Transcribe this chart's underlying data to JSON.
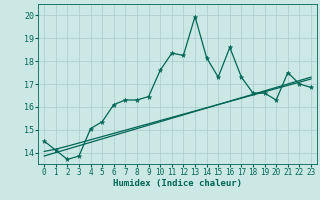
{
  "xlabel": "Humidex (Indice chaleur)",
  "background_color": "#cce8e4",
  "grid_color": "#aacccc",
  "line_color": "#006655",
  "x_values": [
    0,
    1,
    2,
    3,
    4,
    5,
    6,
    7,
    8,
    9,
    10,
    11,
    12,
    13,
    14,
    15,
    16,
    17,
    18,
    19,
    20,
    21,
    22,
    23
  ],
  "y_main": [
    14.5,
    14.1,
    13.7,
    13.85,
    15.05,
    15.35,
    16.1,
    16.3,
    16.3,
    16.45,
    17.6,
    18.35,
    18.25,
    19.95,
    18.15,
    17.3,
    18.6,
    17.3,
    16.6,
    16.6,
    16.3,
    17.5,
    17.0,
    16.85
  ],
  "y_trend1": [
    13.85,
    14.0,
    14.15,
    14.3,
    14.45,
    14.6,
    14.75,
    14.9,
    15.05,
    15.2,
    15.35,
    15.5,
    15.65,
    15.8,
    15.95,
    16.1,
    16.25,
    16.4,
    16.55,
    16.7,
    16.85,
    17.0,
    17.15,
    17.3
  ],
  "y_trend2": [
    14.05,
    14.15,
    14.28,
    14.42,
    14.56,
    14.7,
    14.84,
    14.98,
    15.12,
    15.26,
    15.4,
    15.54,
    15.68,
    15.82,
    15.96,
    16.1,
    16.24,
    16.38,
    16.52,
    16.66,
    16.8,
    16.94,
    17.08,
    17.22
  ],
  "ylim": [
    13.5,
    20.5
  ],
  "xlim": [
    -0.5,
    23.5
  ],
  "yticks": [
    14,
    15,
    16,
    17,
    18,
    19,
    20
  ],
  "xticks": [
    0,
    1,
    2,
    3,
    4,
    5,
    6,
    7,
    8,
    9,
    10,
    11,
    12,
    13,
    14,
    15,
    16,
    17,
    18,
    19,
    20,
    21,
    22,
    23
  ],
  "tick_fontsize": 5.5,
  "xlabel_fontsize": 6.5,
  "marker_size": 3.5
}
